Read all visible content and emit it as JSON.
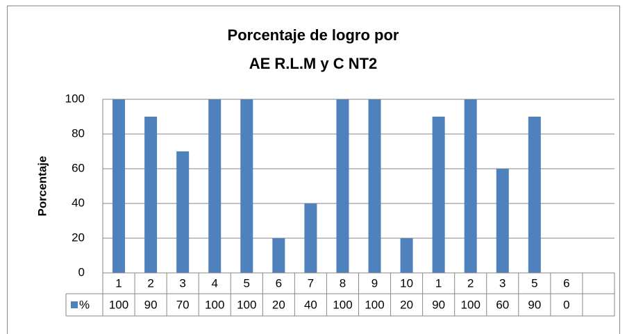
{
  "chart_data": {
    "type": "bar",
    "title": [
      "Porcentaje de logro por",
      "AE R.L.M y C NT2"
    ],
    "y_label": "Porcentaje",
    "categories": [
      "1",
      "2",
      "3",
      "4",
      "5",
      "6",
      "7",
      "8",
      "9",
      "10",
      "1",
      "2",
      "3",
      "5",
      "6",
      null
    ],
    "series": [
      {
        "name": "%",
        "color": "#4f81bd",
        "values": [
          100,
          90,
          70,
          100,
          100,
          20,
          40,
          100,
          100,
          20,
          90,
          100,
          60,
          90,
          0,
          null
        ]
      }
    ],
    "ylim": [
      0,
      100
    ],
    "yticks": [
      0,
      20,
      40,
      60,
      80,
      100
    ],
    "grid": true,
    "data_table": true
  }
}
